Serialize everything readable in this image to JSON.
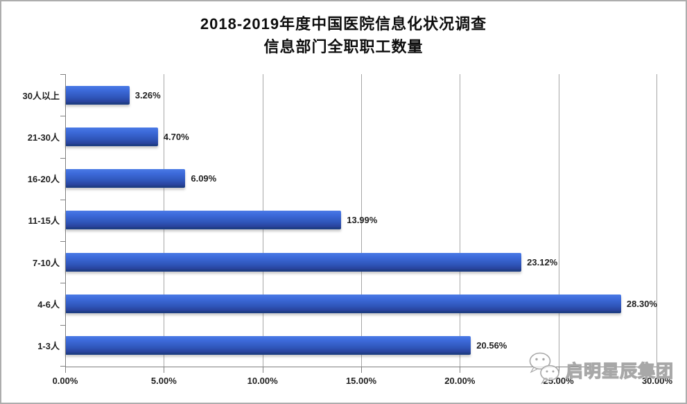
{
  "chart": {
    "title_line1": "2018-2019年度中国医院信息化状况调查",
    "title_line2": "信息部门全职职工数量"
  },
  "chart_data": {
    "type": "bar",
    "orientation": "horizontal",
    "title": "2018-2019年度中国医院信息化状况调查 信息部门全职职工数量",
    "xlabel": "",
    "ylabel": "",
    "categories": [
      "30人以上",
      "21-30人",
      "16-20人",
      "11-15人",
      "7-10人",
      "4-6人",
      "1-3人"
    ],
    "values": [
      3.26,
      4.7,
      6.09,
      13.99,
      23.12,
      28.3,
      20.56
    ],
    "labels": [
      "3.26%",
      "4.70%",
      "6.09%",
      "13.99%",
      "23.12%",
      "28.30%",
      "20.56%"
    ],
    "xlim": [
      0,
      30
    ],
    "x_ticks": [
      "0.00%",
      "5.00%",
      "10.00%",
      "15.00%",
      "20.00%",
      "25.00%",
      "30.00%"
    ],
    "grid": true,
    "legend": "none",
    "bar_color_top": "#4a7ae6",
    "bar_color_bottom": "#283f97",
    "bar_edge_color": "#1e3e85",
    "gridline_color": "#a6a6a6",
    "axis_color": "#7f7f7f"
  },
  "watermark": {
    "text": "启明星辰集团",
    "icon": "wechat-icon"
  }
}
